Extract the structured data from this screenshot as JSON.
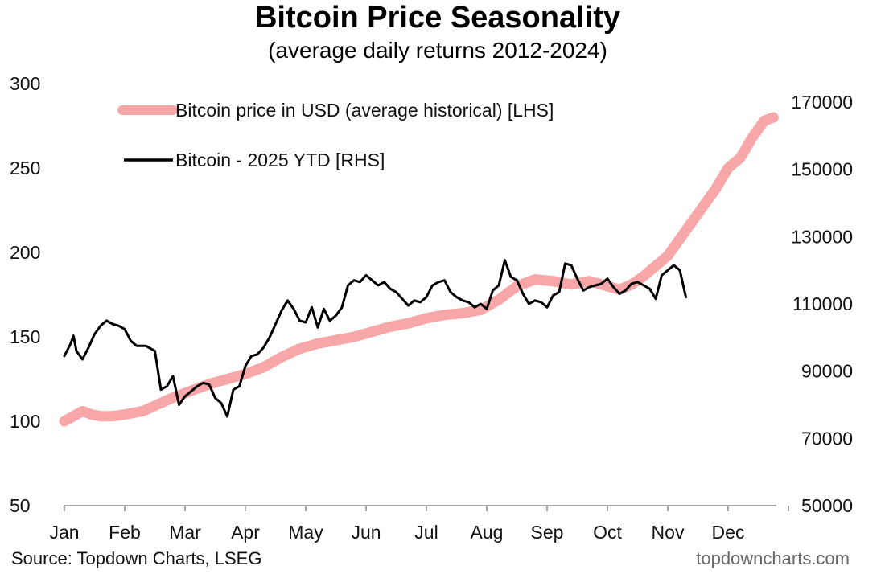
{
  "chart_data": {
    "type": "line",
    "title": "Bitcoin Price Seasonality",
    "subtitle": "(average daily returns 2012-2024)",
    "x_months": [
      "Jan",
      "Feb",
      "Mar",
      "Apr",
      "May",
      "Jun",
      "Jul",
      "Aug",
      "Sep",
      "Oct",
      "Nov",
      "Dec"
    ],
    "y_left": {
      "ticks": [
        50,
        100,
        150,
        200,
        250,
        300
      ],
      "ylim": [
        50,
        300
      ]
    },
    "y_right": {
      "ticks": [
        50000,
        70000,
        90000,
        110000,
        130000,
        150000,
        170000
      ],
      "ylim": [
        50000,
        175000
      ]
    },
    "legend": {
      "position": "top-left"
    },
    "series": [
      {
        "name": "Bitcoin price in USD (average historical) [LHS]",
        "axis": "left",
        "color": "#f7a7a7",
        "x": [
          0,
          0.1,
          0.2,
          0.3,
          0.45,
          0.6,
          0.8,
          1.0,
          1.3,
          1.55,
          1.8,
          2.1,
          2.4,
          2.7,
          3.0,
          3.3,
          3.6,
          3.9,
          4.2,
          4.5,
          4.8,
          5.1,
          5.4,
          5.7,
          6.0,
          6.3,
          6.6,
          6.9,
          7.2,
          7.5,
          7.8,
          8.1,
          8.4,
          8.7,
          9.0,
          9.2,
          9.4,
          9.6,
          9.8,
          10.0,
          10.2,
          10.4,
          10.6,
          10.8,
          11.0,
          11.2,
          11.4,
          11.6,
          11.75
        ],
        "values": [
          100,
          102,
          104,
          106,
          104,
          103,
          103,
          104,
          106,
          110,
          114,
          118,
          122,
          125,
          128,
          132,
          138,
          143,
          146,
          148,
          150,
          153,
          156,
          158,
          161,
          163,
          164,
          166,
          172,
          180,
          184,
          183,
          181,
          183,
          180,
          178,
          181,
          186,
          192,
          198,
          208,
          218,
          228,
          238,
          250,
          256,
          268,
          278,
          280
        ]
      },
      {
        "name": "Bitcoin - 2025 YTD [RHS]",
        "axis": "right",
        "color": "#000000",
        "x": [
          0,
          0.1,
          0.15,
          0.2,
          0.3,
          0.4,
          0.5,
          0.6,
          0.7,
          0.8,
          0.9,
          1.0,
          1.1,
          1.2,
          1.35,
          1.5,
          1.6,
          1.7,
          1.8,
          1.9,
          2.0,
          2.1,
          2.2,
          2.3,
          2.4,
          2.5,
          2.6,
          2.7,
          2.8,
          2.9,
          3.0,
          3.1,
          3.2,
          3.3,
          3.4,
          3.5,
          3.6,
          3.7,
          3.8,
          3.9,
          4.0,
          4.1,
          4.2,
          4.3,
          4.4,
          4.5,
          4.6,
          4.7,
          4.8,
          4.9,
          5.0,
          5.1,
          5.2,
          5.3,
          5.4,
          5.5,
          5.6,
          5.7,
          5.8,
          5.9,
          6.0,
          6.1,
          6.2,
          6.3,
          6.4,
          6.5,
          6.6,
          6.7,
          6.8,
          6.9,
          7.0,
          7.1,
          7.2,
          7.3,
          7.4,
          7.5,
          7.6,
          7.7,
          7.8,
          7.9,
          8.0,
          8.1,
          8.2,
          8.3,
          8.4,
          8.5,
          8.6,
          8.7,
          8.8,
          8.9,
          9.0,
          9.1,
          9.2,
          9.3,
          9.4,
          9.5,
          9.6,
          9.7,
          9.8,
          9.9,
          10.0,
          10.1,
          10.2,
          10.3
        ],
        "values": [
          94500,
          98000,
          100500,
          96000,
          93500,
          97000,
          101000,
          103500,
          105000,
          104000,
          103500,
          102500,
          99000,
          97500,
          97500,
          96000,
          84500,
          85500,
          88500,
          80000,
          82500,
          84000,
          85500,
          86500,
          86000,
          82000,
          80500,
          76500,
          84500,
          85500,
          91500,
          94500,
          95000,
          97000,
          100000,
          104000,
          108000,
          111000,
          108500,
          105000,
          104500,
          109000,
          103000,
          108500,
          105000,
          106500,
          109000,
          115500,
          117000,
          116500,
          118500,
          117000,
          115500,
          116500,
          114500,
          113500,
          111500,
          109500,
          111000,
          110500,
          112000,
          115500,
          116500,
          117000,
          113500,
          112000,
          111000,
          110500,
          109000,
          110000,
          108500,
          114000,
          115500,
          123000,
          118000,
          117000,
          113000,
          110000,
          111000,
          110500,
          109000,
          112500,
          113500,
          122000,
          121500,
          117500,
          114000,
          115000,
          115500,
          116000,
          117500,
          115000,
          113000,
          114000,
          116000,
          116500,
          115500,
          114500,
          111500,
          118500,
          120000,
          121500,
          120000,
          112000
        ]
      }
    ]
  },
  "footer": {
    "source": "Source: Topdown Charts, LSEG",
    "brand": "topdowncharts.com"
  }
}
